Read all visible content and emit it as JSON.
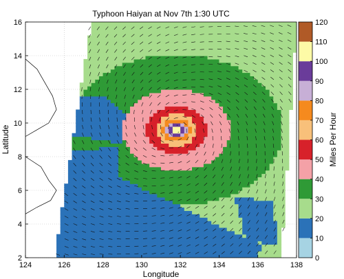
{
  "chart_data": {
    "type": "heatmap",
    "title": "Typhoon Haiyan at Nov 7th 1:30 UTC",
    "xlabel": "Longitude",
    "ylabel": "Latitude",
    "xlim": [
      124,
      138
    ],
    "ylim": [
      2,
      16
    ],
    "x_ticks": [
      124,
      126,
      128,
      130,
      132,
      134,
      136,
      138
    ],
    "y_ticks": [
      2,
      4,
      6,
      8,
      10,
      12,
      14,
      16
    ],
    "grid": true,
    "colorbar": {
      "label": "Miles Per Hour",
      "ticks": [
        0,
        10,
        20,
        30,
        40,
        50,
        60,
        70,
        80,
        90,
        100,
        110,
        120
      ],
      "bins": [
        {
          "min": 0,
          "max": 10,
          "color": "#a6d3e3"
        },
        {
          "min": 10,
          "max": 20,
          "color": "#2b72b8"
        },
        {
          "min": 20,
          "max": 30,
          "color": "#a7dc8c"
        },
        {
          "min": 30,
          "max": 40,
          "color": "#2f9a36"
        },
        {
          "min": 40,
          "max": 50,
          "color": "#f4a1a7"
        },
        {
          "min": 50,
          "max": 60,
          "color": "#d7212a"
        },
        {
          "min": 60,
          "max": 70,
          "color": "#f8c07a"
        },
        {
          "min": 70,
          "max": 80,
          "color": "#f58a1e"
        },
        {
          "min": 80,
          "max": 90,
          "color": "#c7afd6"
        },
        {
          "min": 90,
          "max": 100,
          "color": "#6a3c9a"
        },
        {
          "min": 100,
          "max": 110,
          "color": "#fdfaa6"
        },
        {
          "min": 110,
          "max": 120,
          "color": "#b05a27"
        }
      ]
    },
    "swath": {
      "corners": [
        [
          127.4,
          16
        ],
        [
          138,
          16
        ],
        [
          137.2,
          2
        ],
        [
          125.5,
          2
        ]
      ],
      "background_speed_mph": 25
    },
    "storm_center": {
      "lon": 131.8,
      "lat": 9.6
    },
    "wind_rings_mph": [
      {
        "speed": 45,
        "radius_lon": 2.8,
        "radius_lat": 2.4
      },
      {
        "speed": 55,
        "radius_lon": 1.6,
        "radius_lat": 1.4
      },
      {
        "speed": 65,
        "radius_lon": 1.05,
        "radius_lat": 0.95
      },
      {
        "speed": 75,
        "radius_lon": 0.75,
        "radius_lat": 0.7
      },
      {
        "speed": 85,
        "radius_lon": 0.55,
        "radius_lat": 0.5
      },
      {
        "speed": 95,
        "radius_lon": 0.4,
        "radius_lat": 0.35
      },
      {
        "speed": 105,
        "radius_lon": 0.18,
        "radius_lat": 0.16
      }
    ],
    "low_wind_regions_mph": [
      {
        "speed": 15,
        "polygon": [
          [
            125.5,
            2
          ],
          [
            124.6,
            6.2
          ],
          [
            125.2,
            8.2
          ],
          [
            128.8,
            8.6
          ],
          [
            128.8,
            6.8
          ],
          [
            131.2,
            5.5
          ],
          [
            133.5,
            4.2
          ],
          [
            136.2,
            2.8
          ],
          [
            136.0,
            2
          ]
        ]
      },
      {
        "speed": 15,
        "polygon": [
          [
            126.0,
            11.6
          ],
          [
            125.8,
            9.4
          ],
          [
            129.0,
            8.8
          ],
          [
            129.4,
            10.2
          ],
          [
            128.0,
            11.7
          ]
        ]
      },
      {
        "speed": 15,
        "polygon": [
          [
            134.8,
            5.6
          ],
          [
            136.8,
            5.4
          ],
          [
            137.0,
            2.8
          ],
          [
            135.4,
            3.0
          ]
        ]
      }
    ],
    "wind_vectors": {
      "flow": "cyclonic",
      "spacing_deg": 0.45
    }
  }
}
